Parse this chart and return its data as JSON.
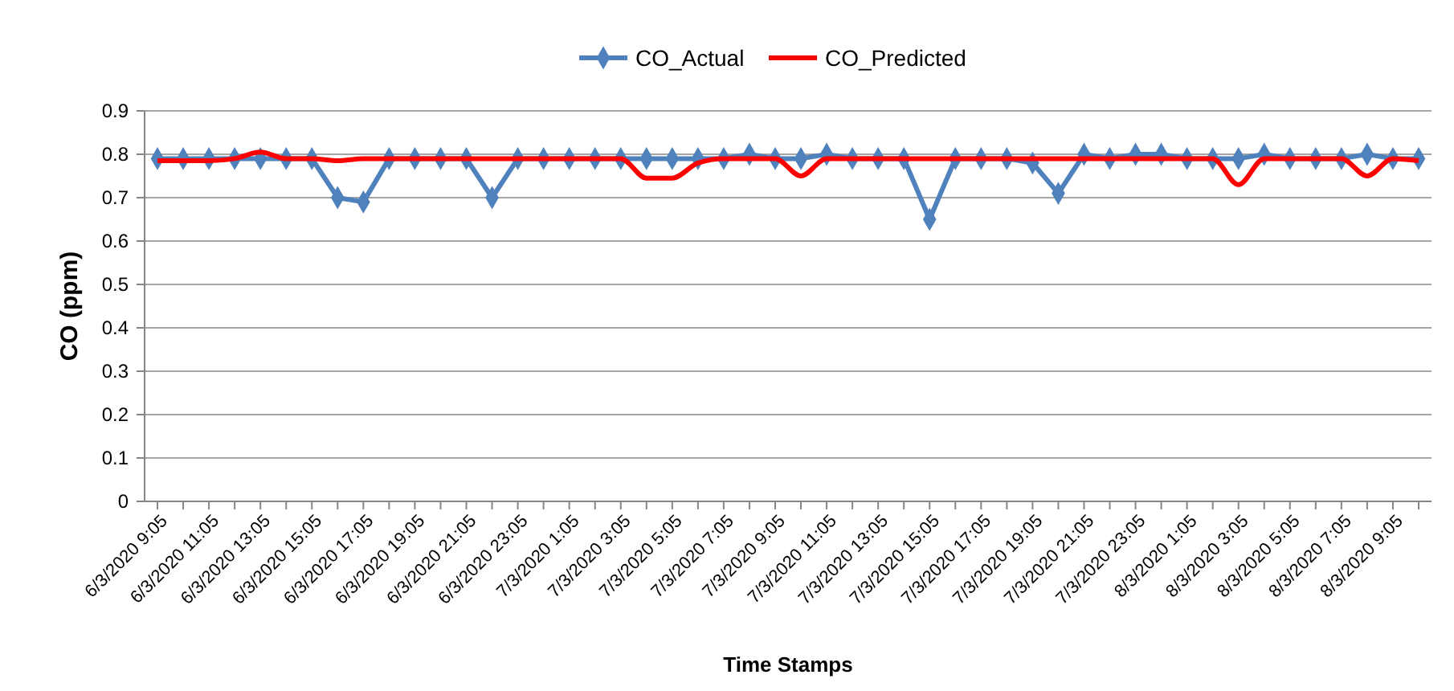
{
  "chart_data": {
    "type": "line",
    "xlabel": "Time Stamps",
    "ylabel": "CO (ppm)",
    "categories": [
      "6/3/2020 9:05",
      null,
      "6/3/2020 11:05",
      null,
      "6/3/2020 13:05",
      null,
      "6/3/2020 15:05",
      null,
      "6/3/2020 17:05",
      null,
      "6/3/2020 19:05",
      null,
      "6/3/2020 21:05",
      null,
      "6/3/2020 23:05",
      null,
      "7/3/2020 1:05",
      null,
      "7/3/2020 3:05",
      null,
      "7/3/2020 5:05",
      null,
      "7/3/2020 7:05",
      null,
      "7/3/2020 9:05",
      null,
      "7/3/2020 11:05",
      null,
      "7/3/2020 13:05",
      null,
      "7/3/2020 15:05",
      null,
      "7/3/2020 17:05",
      null,
      "7/3/2020 19:05",
      null,
      "7/3/2020 21:05",
      null,
      "7/3/2020 23:05",
      null,
      "8/3/2020 1:05",
      null,
      "8/3/2020 3:05",
      null,
      "8/3/2020 5:05",
      null,
      "8/3/2020 7:05",
      null,
      "8/3/2020 9:05",
      null
    ],
    "series": [
      {
        "name": "CO_Actual",
        "color": "#4f81bd",
        "marker": "diamond",
        "values": [
          0.79,
          0.79,
          0.79,
          0.79,
          0.79,
          0.79,
          0.79,
          0.7,
          0.69,
          0.79,
          0.79,
          0.79,
          0.79,
          0.7,
          0.79,
          0.79,
          0.79,
          0.79,
          0.79,
          0.79,
          0.79,
          0.79,
          0.79,
          0.8,
          0.79,
          0.79,
          0.8,
          0.79,
          0.79,
          0.79,
          0.65,
          0.79,
          0.79,
          0.79,
          0.78,
          0.71,
          0.8,
          0.79,
          0.8,
          0.8,
          0.79,
          0.79,
          0.79,
          0.8,
          0.79,
          0.79,
          0.79,
          0.8,
          0.79,
          0.79
        ]
      },
      {
        "name": "CO_Predicted",
        "color": "#ff0000",
        "marker": "none",
        "values": [
          0.785,
          0.785,
          0.785,
          0.79,
          0.805,
          0.79,
          0.79,
          0.785,
          0.79,
          0.79,
          0.79,
          0.79,
          0.79,
          0.79,
          0.79,
          0.79,
          0.79,
          0.79,
          0.79,
          0.745,
          0.745,
          0.78,
          0.79,
          0.79,
          0.79,
          0.75,
          0.79,
          0.79,
          0.79,
          0.79,
          0.79,
          0.79,
          0.79,
          0.79,
          0.79,
          0.79,
          0.79,
          0.79,
          0.79,
          0.79,
          0.79,
          0.79,
          0.73,
          0.79,
          0.79,
          0.79,
          0.79,
          0.75,
          0.79,
          0.785
        ]
      }
    ],
    "ylim": [
      0,
      0.9
    ],
    "yticks": [
      0,
      0.1,
      0.2,
      0.3,
      0.4,
      0.5,
      0.6,
      0.7,
      0.8,
      0.9
    ],
    "grid": "y",
    "legend": "top",
    "line_style": "solid"
  }
}
